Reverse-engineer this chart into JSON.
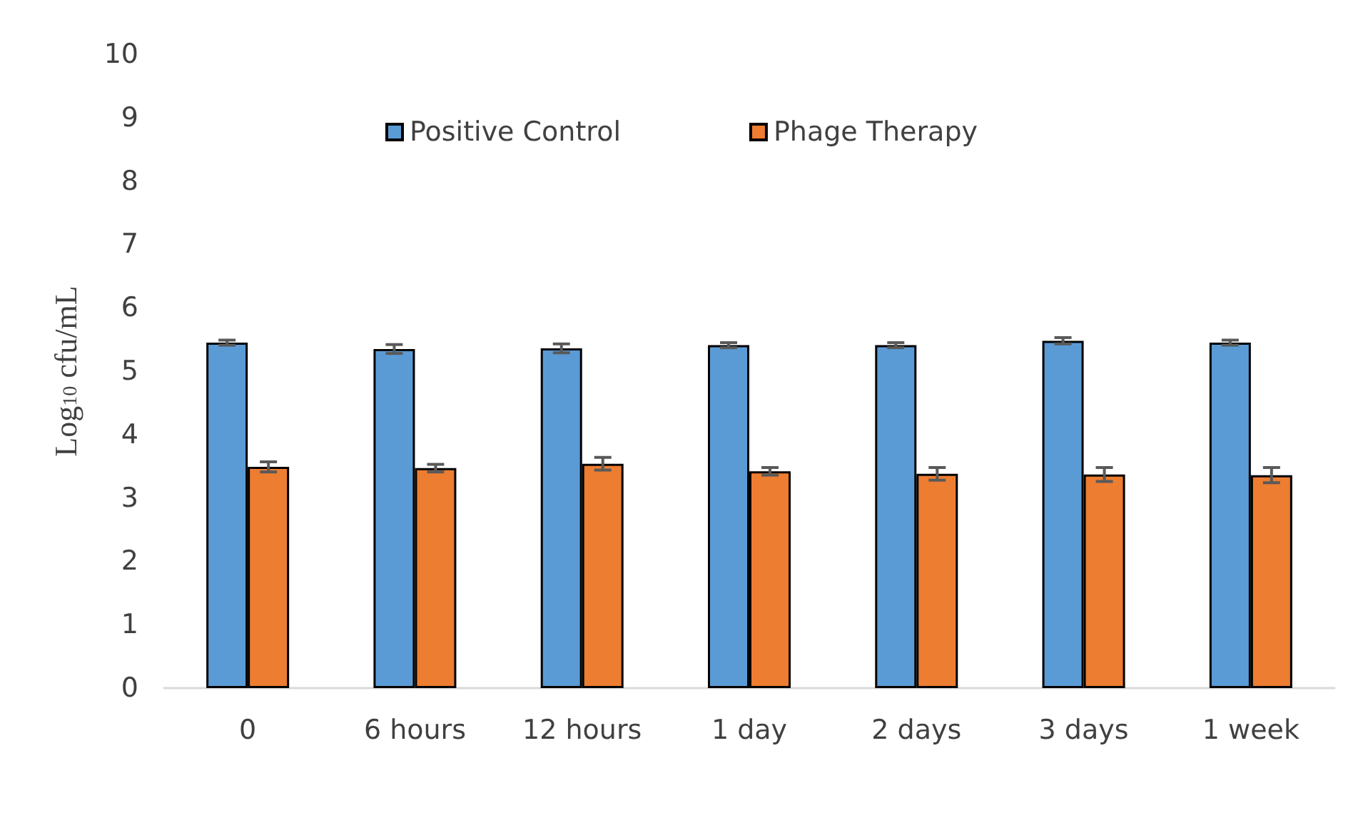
{
  "chart_data": {
    "type": "bar",
    "ylabel": "Log$_{10}$ cfu/mL",
    "categories": [
      "0",
      "6 hours",
      "12 hours",
      "1 day",
      "2 days",
      "3 days",
      "1 week"
    ],
    "series": [
      {
        "name": "Positive Control",
        "color": "#5b9bd5",
        "values": [
          5.45,
          5.35,
          5.36,
          5.41,
          5.41,
          5.48,
          5.45
        ],
        "errors": [
          0.04,
          0.07,
          0.07,
          0.04,
          0.04,
          0.05,
          0.04
        ]
      },
      {
        "name": "Phage Therapy",
        "color": "#ed7d31",
        "values": [
          3.49,
          3.47,
          3.54,
          3.42,
          3.38,
          3.37,
          3.36
        ],
        "errors": [
          0.08,
          0.06,
          0.1,
          0.06,
          0.1,
          0.11,
          0.12
        ]
      }
    ],
    "ylim": [
      0,
      10
    ],
    "yticks": [
      0,
      1,
      2,
      3,
      4,
      5,
      6,
      7,
      8,
      9,
      10
    ],
    "grid": false,
    "legend": "top"
  }
}
